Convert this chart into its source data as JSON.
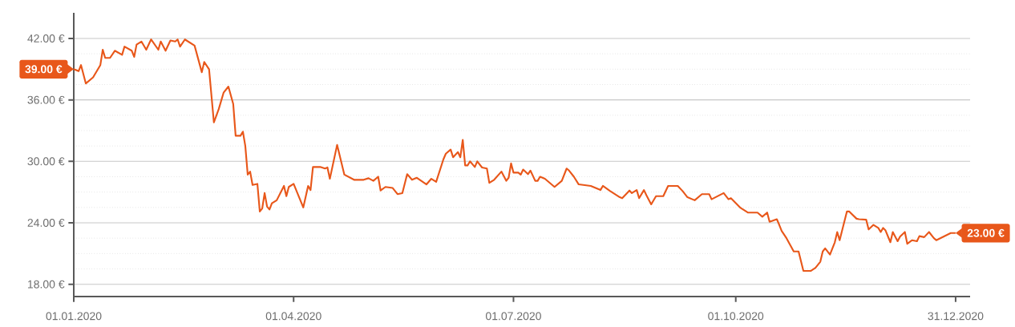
{
  "chart_data": {
    "type": "line",
    "color": "#e8571a",
    "grid": "y",
    "xlim": [
      "2020-01-01",
      "2021-01-06"
    ],
    "ylim": [
      16.8,
      44.5
    ],
    "xticks": [
      {
        "value": "2020-01-01",
        "label": "01.01.2020"
      },
      {
        "value": "2020-04-01",
        "label": "01.04.2020"
      },
      {
        "value": "2020-07-01",
        "label": "01.07.2020"
      },
      {
        "value": "2020-10-01",
        "label": "01.10.2020"
      },
      {
        "value": "2020-12-31",
        "label": "31.12.2020"
      }
    ],
    "yticks": [
      {
        "value": 18,
        "label": "18.00 €"
      },
      {
        "value": 24,
        "label": "24.00 €"
      },
      {
        "value": 30,
        "label": "30.00 €"
      },
      {
        "value": 36,
        "label": "36.00 €"
      },
      {
        "value": 42,
        "label": "42.00 €"
      }
    ],
    "annotations": [
      {
        "text": "39.00 €",
        "x": "2020-01-01",
        "y": 39
      },
      {
        "text": "23.00 €",
        "x": "2020-12-31",
        "y": 23
      }
    ],
    "x": [
      "2020-01-01",
      "2020-01-03",
      "2020-01-04",
      "2020-01-06",
      "2020-01-09",
      "2020-01-12",
      "2020-01-13",
      "2020-01-14",
      "2020-01-16",
      "2020-01-18",
      "2020-01-21",
      "2020-01-22",
      "2020-01-25",
      "2020-01-26",
      "2020-01-27",
      "2020-01-29",
      "2020-01-31",
      "2020-02-02",
      "2020-02-05",
      "2020-02-06",
      "2020-02-08",
      "2020-02-10",
      "2020-02-12",
      "2020-02-13",
      "2020-02-14",
      "2020-02-16",
      "2020-02-20",
      "2020-02-23",
      "2020-02-24",
      "2020-02-26",
      "2020-02-28",
      "2020-03-01",
      "2020-03-03",
      "2020-03-05",
      "2020-03-07",
      "2020-03-08",
      "2020-03-10",
      "2020-03-11",
      "2020-03-12",
      "2020-03-13",
      "2020-03-14",
      "2020-03-15",
      "2020-03-17",
      "2020-03-18",
      "2020-03-19",
      "2020-03-20",
      "2020-03-21",
      "2020-03-22",
      "2020-03-23",
      "2020-03-25",
      "2020-03-28",
      "2020-03-29",
      "2020-03-30",
      "2020-04-01",
      "2020-04-05",
      "2020-04-07",
      "2020-04-08",
      "2020-04-09",
      "2020-04-12",
      "2020-04-14",
      "2020-04-15",
      "2020-04-16",
      "2020-04-19",
      "2020-04-22",
      "2020-04-26",
      "2020-04-30",
      "2020-05-02",
      "2020-05-04",
      "2020-05-06",
      "2020-05-07",
      "2020-05-09",
      "2020-05-12",
      "2020-05-14",
      "2020-05-16",
      "2020-05-18",
      "2020-05-20",
      "2020-05-22",
      "2020-05-26",
      "2020-05-28",
      "2020-05-30",
      "2020-06-02",
      "2020-06-03",
      "2020-06-05",
      "2020-06-06",
      "2020-06-08",
      "2020-06-09",
      "2020-06-10",
      "2020-06-11",
      "2020-06-12",
      "2020-06-13",
      "2020-06-15",
      "2020-06-16",
      "2020-06-18",
      "2020-06-20",
      "2020-06-21",
      "2020-06-23",
      "2020-06-26",
      "2020-06-28",
      "2020-06-29",
      "2020-06-30",
      "2020-07-01",
      "2020-07-03",
      "2020-07-04",
      "2020-07-05",
      "2020-07-07",
      "2020-07-08",
      "2020-07-10",
      "2020-07-11",
      "2020-07-12",
      "2020-07-14",
      "2020-07-18",
      "2020-07-21",
      "2020-07-23",
      "2020-07-24",
      "2020-07-26",
      "2020-07-28",
      "2020-08-02",
      "2020-08-06",
      "2020-08-07",
      "2020-08-10",
      "2020-08-14",
      "2020-08-15",
      "2020-08-17",
      "2020-08-18",
      "2020-08-19",
      "2020-08-21",
      "2020-08-22",
      "2020-08-24",
      "2020-08-25",
      "2020-08-27",
      "2020-08-29",
      "2020-09-01",
      "2020-09-03",
      "2020-09-07",
      "2020-09-09",
      "2020-09-11",
      "2020-09-14",
      "2020-09-17",
      "2020-09-20",
      "2020-09-21",
      "2020-09-26",
      "2020-09-28",
      "2020-09-29",
      "2020-10-03",
      "2020-10-06",
      "2020-10-10",
      "2020-10-12",
      "2020-10-14",
      "2020-10-15",
      "2020-10-18",
      "2020-10-19",
      "2020-10-20",
      "2020-10-22",
      "2020-10-25",
      "2020-10-27",
      "2020-10-29",
      "2020-11-01",
      "2020-11-03",
      "2020-11-05",
      "2020-11-06",
      "2020-11-07",
      "2020-11-09",
      "2020-11-11",
      "2020-11-12",
      "2020-11-13",
      "2020-11-16",
      "2020-11-17",
      "2020-11-20",
      "2020-11-21",
      "2020-11-24",
      "2020-11-25",
      "2020-11-27",
      "2020-11-29",
      "2020-11-30",
      "2020-12-01",
      "2020-12-02",
      "2020-12-04",
      "2020-12-05",
      "2020-12-07",
      "2020-12-08",
      "2020-12-10",
      "2020-12-11",
      "2020-12-13",
      "2020-12-15",
      "2020-12-16",
      "2020-12-18",
      "2020-12-20",
      "2020-12-22",
      "2020-12-23",
      "2020-12-29",
      "2020-12-31"
    ],
    "values": [
      39.0,
      38.8,
      39.4,
      37.6,
      38.2,
      39.4,
      40.9,
      40.1,
      40.1,
      40.8,
      40.4,
      41.2,
      40.8,
      40.2,
      41.4,
      41.7,
      40.9,
      41.9,
      40.9,
      41.7,
      40.8,
      41.8,
      41.7,
      41.9,
      41.2,
      41.9,
      41.3,
      38.7,
      39.7,
      39.0,
      33.8,
      35.1,
      36.7,
      37.3,
      35.6,
      32.5,
      32.5,
      32.9,
      31.5,
      28.7,
      29.0,
      27.7,
      27.8,
      25.1,
      25.4,
      26.9,
      25.6,
      25.3,
      25.9,
      26.2,
      27.6,
      26.6,
      27.5,
      27.8,
      25.5,
      27.6,
      27.2,
      29.45,
      29.45,
      29.3,
      29.4,
      28.3,
      31.6,
      28.7,
      28.2,
      28.2,
      28.35,
      28.1,
      28.5,
      27.15,
      27.5,
      27.4,
      26.8,
      26.9,
      28.75,
      28.2,
      28.4,
      27.75,
      28.3,
      28.0,
      30.2,
      30.75,
      31.15,
      30.4,
      30.9,
      30.4,
      32.1,
      29.6,
      29.6,
      30.0,
      29.45,
      30.0,
      29.4,
      29.3,
      27.9,
      28.2,
      29.0,
      28.1,
      28.4,
      29.8,
      28.9,
      28.9,
      28.7,
      29.2,
      28.75,
      29.1,
      28.1,
      28.1,
      28.5,
      28.3,
      27.5,
      28.1,
      29.3,
      29.1,
      28.5,
      27.75,
      27.6,
      27.2,
      27.6,
      27.1,
      26.5,
      26.4,
      26.9,
      27.15,
      26.9,
      27.2,
      26.4,
      27.2,
      26.7,
      25.8,
      26.6,
      26.6,
      27.6,
      27.6,
      27.1,
      26.5,
      26.2,
      26.8,
      26.8,
      26.3,
      26.9,
      26.3,
      26.4,
      25.45,
      25.0,
      25.0,
      24.6,
      25.0,
      24.1,
      24.35,
      23.8,
      23.2,
      22.5,
      21.2,
      21.2,
      19.3,
      19.3,
      19.6,
      20.2,
      21.2,
      21.5,
      20.9,
      22.1,
      23.1,
      22.3,
      25.1,
      25.1,
      24.4,
      24.35,
      24.3,
      23.35,
      23.8,
      23.5,
      23.1,
      23.5,
      23.25,
      22.1,
      23.1,
      22.2,
      22.65,
      23.1,
      21.95,
      22.3,
      22.2,
      22.7,
      22.6,
      23.1,
      22.5,
      22.3,
      23.0,
      23.0
    ]
  }
}
